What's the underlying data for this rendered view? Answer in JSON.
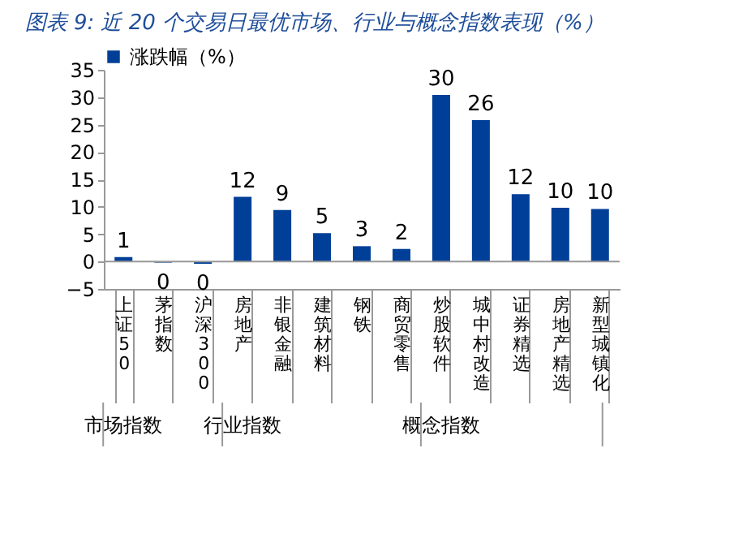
{
  "chart_data": {
    "type": "bar",
    "title": "图表 9:  近 20 个交易日最优市场、行业与概念指数表现（%）",
    "categories": [
      "上证50",
      "茅指数",
      "沪深300",
      "房地产",
      "非银金融",
      "建筑材料",
      "钢铁",
      "商贸零售",
      "炒股软件",
      "城中村改造",
      "证券精选",
      "房地产精选",
      "新型城镇化"
    ],
    "series": [
      {
        "name": "涨跌幅（%）",
        "color": "#003f98",
        "values": [
          0.8,
          -0.2,
          -0.4,
          11.8,
          9.4,
          5.2,
          2.8,
          2.3,
          30.4,
          25.8,
          12.3,
          9.8,
          9.6
        ],
        "value_labels": [
          "1",
          "0",
          "0",
          "12",
          "9",
          "5",
          "3",
          "2",
          "30",
          "26",
          "12",
          "10",
          "10"
        ]
      }
    ],
    "annotations": [
      "市场指数",
      "行业指数",
      "概念指数"
    ],
    "ylim": [
      -5,
      35
    ],
    "yticks": [
      -5,
      0,
      5,
      10,
      15,
      20,
      25,
      30,
      35
    ],
    "legend": "top"
  }
}
